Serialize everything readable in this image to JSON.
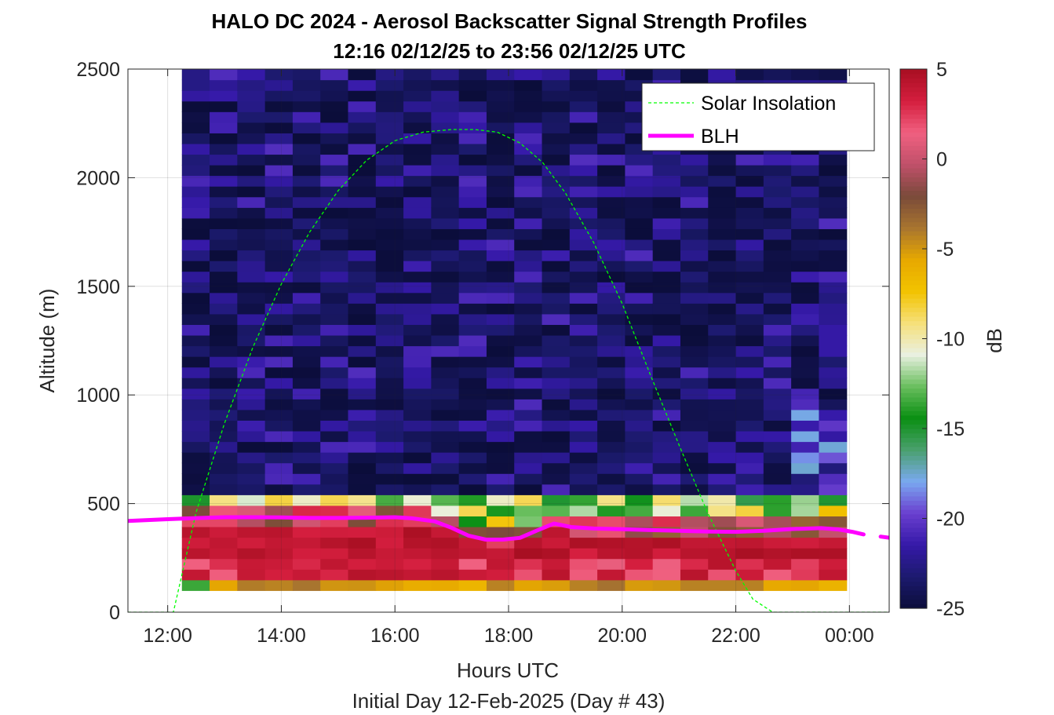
{
  "chart_data": {
    "type": "heatmap",
    "title": "HALO DC 2024 - Aerosol Backscatter Signal Strength Profiles",
    "subtitle": "12:16 02/12/25 to 23:56 02/12/25  UTC",
    "xlabel": "Hours UTC",
    "xlabel2": "Initial Day 12-Feb-2025 (Day # 43)",
    "ylabel": "Altitude (m)",
    "colorbar_label": "dB",
    "x_tick_labels": [
      "12:00",
      "14:00",
      "16:00",
      "18:00",
      "20:00",
      "22:00",
      "00:00"
    ],
    "x_ticks_hours": [
      12,
      14,
      16,
      18,
      20,
      22,
      24
    ],
    "xlim_hours": [
      11.3,
      24.7
    ],
    "y_ticks": [
      0,
      500,
      1000,
      1500,
      2000,
      2500
    ],
    "ylim": [
      0,
      2500
    ],
    "clim": [
      -25,
      5
    ],
    "colorbar_ticks": [
      5,
      0,
      -5,
      -10,
      -15,
      -20,
      -25
    ],
    "colormap": [
      "#0b0d3a",
      "#1c1a6e",
      "#3519a8",
      "#6a3fcf",
      "#7aa9f0",
      "#4aa06e",
      "#0a8f12",
      "#69be5e",
      "#e9f0e0",
      "#f6e07a",
      "#f2c300",
      "#e7a800",
      "#a8752f",
      "#7a4a3a",
      "#c0506a",
      "#f06080",
      "#d41e3e",
      "#a80f22"
    ],
    "data_extent": {
      "x_hours": [
        12.25,
        23.95
      ],
      "y_altitude": [
        100,
        2500
      ]
    },
    "time_bins": 24,
    "alt_bins": 49,
    "grid": true,
    "legend_location": "top-right",
    "series": [
      {
        "name": "Solar Insolation",
        "style": "dashed",
        "color": "#00ff00",
        "x": [
          11.3,
          12.1,
          12.5,
          13.0,
          13.5,
          14.0,
          14.5,
          15.0,
          15.5,
          16.0,
          16.5,
          17.0,
          17.4,
          17.8,
          18.2,
          18.6,
          19.0,
          19.5,
          20.0,
          20.5,
          21.0,
          21.5,
          22.0,
          22.3,
          22.65,
          24.7
        ],
        "y": [
          0,
          0,
          460,
          870,
          1220,
          1510,
          1750,
          1940,
          2080,
          2170,
          2210,
          2222,
          2222,
          2210,
          2160,
          2070,
          1930,
          1700,
          1420,
          1090,
          770,
          460,
          190,
          60,
          0,
          0
        ]
      },
      {
        "name": "BLH",
        "style": "solid",
        "color": "#ff00ff",
        "x": [
          11.3,
          12.0,
          12.5,
          13.0,
          13.5,
          14.0,
          14.5,
          15.0,
          15.5,
          16.0,
          16.3,
          16.7,
          17.0,
          17.3,
          17.6,
          17.9,
          18.2,
          18.5,
          18.8,
          19.1,
          19.5,
          20.0,
          20.5,
          21.0,
          21.5,
          22.0,
          22.5,
          23.0,
          23.5,
          23.8,
          24.05,
          24.25
        ],
        "y": [
          420,
          428,
          433,
          437,
          437,
          436,
          434,
          434,
          435,
          437,
          432,
          418,
          388,
          352,
          334,
          334,
          342,
          376,
          408,
          392,
          385,
          382,
          378,
          375,
          371,
          370,
          375,
          383,
          387,
          381,
          370,
          358
        ],
        "x2": [
          24.55,
          24.7
        ],
        "y2": [
          348,
          343
        ]
      }
    ]
  }
}
